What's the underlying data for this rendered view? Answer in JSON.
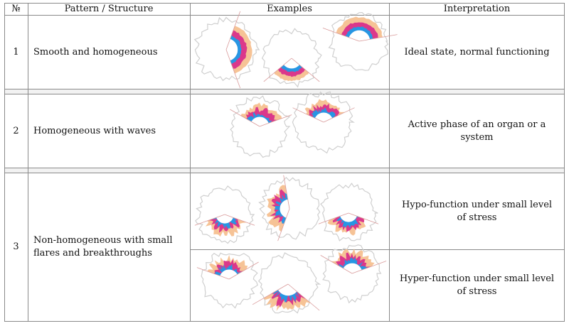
{
  "table": {
    "headers": {
      "number": "№",
      "pattern": "Pattern / Structure",
      "examples": "Examples",
      "interpretation": "Interpretation"
    },
    "rows": [
      {
        "number": "1",
        "pattern": "Smooth and homogeneous",
        "interpretation": "Ideal state, normal functioning"
      },
      {
        "number": "2",
        "pattern": "Homogeneous with waves",
        "interpretation": "Active phase of an organ or a system"
      },
      {
        "number": "3",
        "pattern": "Non-homogeneous with small flares and breakthroughs",
        "interpretations": [
          "Hypo-function under small level of stress",
          "Hyper-function under small level of stress"
        ]
      }
    ]
  },
  "colors": {
    "border": "#8a8a8a",
    "flare_outer": "#f6c090",
    "flare_mid": "#d9308a",
    "flare_inner": "#1e9be8",
    "aura_outline": "#cfcfcf"
  }
}
